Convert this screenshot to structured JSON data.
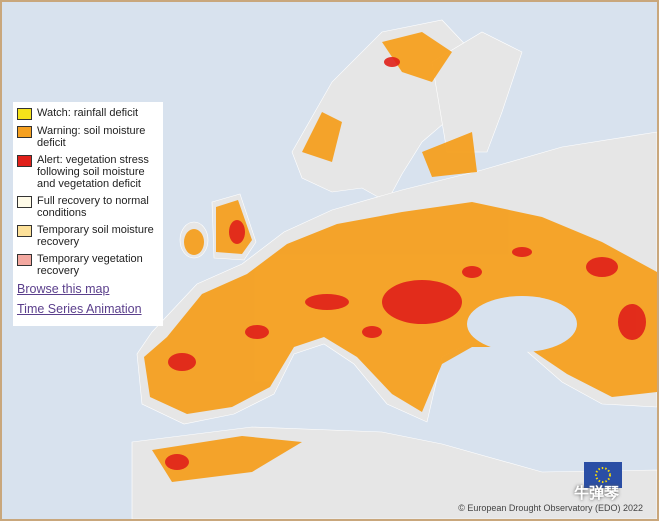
{
  "legend": {
    "items": [
      {
        "label": "Watch: rainfall deficit",
        "color": "#f5e31a"
      },
      {
        "label": "Warning: soil moisture deficit",
        "color": "#f5a020"
      },
      {
        "label": "Alert: vegetation stress following soil moisture and vegetation deficit",
        "color": "#e0201a"
      },
      {
        "label": "Full recovery to normal conditions",
        "color": "#fffbe8"
      },
      {
        "label": "Temporary soil moisture recovery",
        "color": "#fde19a"
      },
      {
        "label": "Temporary vegetation recovery",
        "color": "#f3a8a0"
      }
    ],
    "links": [
      "Browse this map",
      "Time Series Animation"
    ]
  },
  "credit": "© European Drought Observatory (EDO) 2022",
  "watermark": "牛弹琴"
}
